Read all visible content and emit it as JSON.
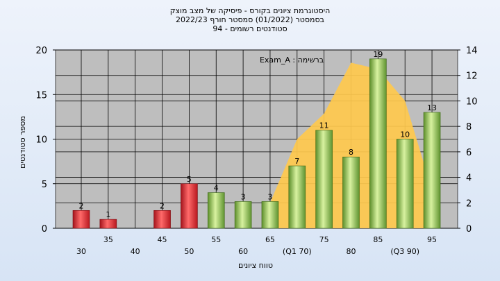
{
  "chart_data": {
    "type": "bar",
    "title_lines": [
      "היסטוגרמת ציונים בקורס - פיסיקה של מצב מוצק",
      "בסמסטר  (01/2022)  סמסטר חורף 2022/23",
      "סטודנטים רשומים - 94"
    ],
    "annotation": "Exam_A : ברשימה",
    "xlabel": "טווח ציונים",
    "ylabel": "מספר סטודנטים",
    "categories": [
      "30",
      "35",
      "40",
      "45",
      "50",
      "55",
      "60",
      "65",
      "(Q1 70)",
      "75",
      "80",
      "85",
      "(Q3 90)",
      "95"
    ],
    "values": [
      2,
      1,
      0,
      2,
      5,
      4,
      3,
      3,
      7,
      11,
      8,
      19,
      10,
      13
    ],
    "bar_colors": [
      "red",
      "red",
      "none",
      "red",
      "red",
      "green",
      "green",
      "green",
      "green",
      "green",
      "green",
      "green",
      "green",
      "green"
    ],
    "ylim": [
      0,
      20
    ],
    "yticks": [
      0,
      5,
      10,
      15,
      20
    ],
    "y2lim": [
      0,
      14
    ],
    "y2ticks": [
      0,
      2,
      4,
      6,
      8,
      10,
      12,
      14
    ],
    "area_series": {
      "x": [
        "65",
        "(Q1 70)",
        "75",
        "80",
        "85",
        "(Q3 90)",
        "95"
      ],
      "values": [
        2.0,
        7.0,
        9.0,
        13.0,
        12.5,
        10.0,
        3.0
      ]
    },
    "grid": true,
    "colors": {
      "red": "#e03a3e",
      "green": "#8cc04a",
      "area": "#ffc94d",
      "plot_bg": "#bebebe"
    }
  }
}
